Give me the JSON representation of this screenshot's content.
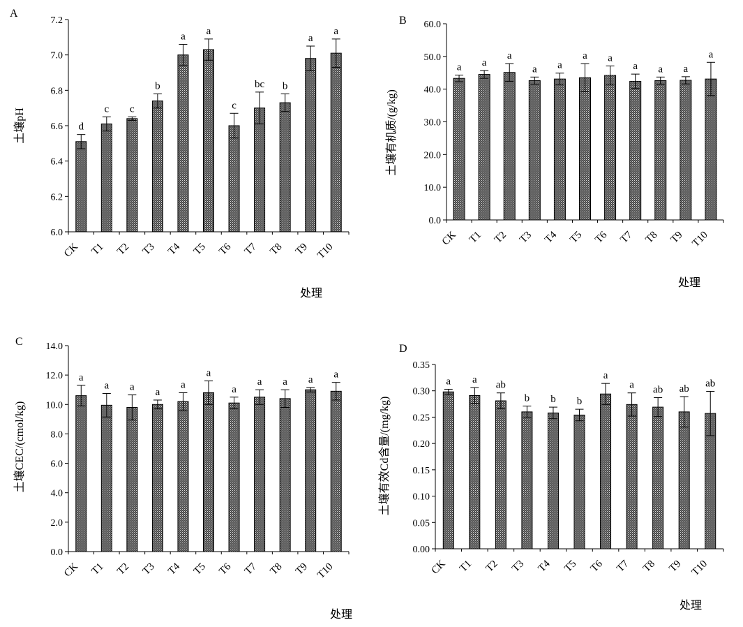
{
  "chart_data": [
    {
      "panel": "A",
      "type": "bar",
      "categories": [
        "CK",
        "T1",
        "T2",
        "T3",
        "T4",
        "T5",
        "T6",
        "T7",
        "T8",
        "T9",
        "T10"
      ],
      "values": [
        6.51,
        6.61,
        6.64,
        6.74,
        7.0,
        7.03,
        6.6,
        6.7,
        6.73,
        6.98,
        7.01
      ],
      "errors": [
        0.04,
        0.04,
        0.01,
        0.04,
        0.06,
        0.06,
        0.07,
        0.09,
        0.05,
        0.07,
        0.08
      ],
      "labels": [
        "d",
        "c",
        "c",
        "b",
        "a",
        "a",
        "c",
        "bc",
        "b",
        "a",
        "a"
      ],
      "ylabel": "土壤pH",
      "xlabel": "处理",
      "ylim": [
        6.0,
        7.2
      ],
      "yticks": [
        "6.0",
        "6.2",
        "6.4",
        "6.6",
        "6.8",
        "7.0",
        "7.2"
      ],
      "grid": false
    },
    {
      "panel": "B",
      "type": "bar",
      "categories": [
        "CK",
        "T1",
        "T2",
        "T3",
        "T4",
        "T5",
        "T6",
        "T7",
        "T8",
        "T9",
        "T10"
      ],
      "values": [
        43.3,
        44.5,
        45.1,
        42.6,
        43.1,
        43.5,
        44.2,
        42.4,
        42.6,
        42.7,
        43.1
      ],
      "errors": [
        1.0,
        1.2,
        2.7,
        1.1,
        1.8,
        4.3,
        2.9,
        2.2,
        1.1,
        1.1,
        5.1
      ],
      "labels": [
        "a",
        "a",
        "a",
        "a",
        "a",
        "a",
        "a",
        "a",
        "a",
        "a",
        "a"
      ],
      "ylabel": "土壤有机质/(g/kg)",
      "xlabel": "处理",
      "ylim": [
        0,
        60
      ],
      "yticks": [
        "0.0",
        "10.0",
        "20.0",
        "30.0",
        "40.0",
        "50.0",
        "60.0"
      ],
      "grid": false
    },
    {
      "panel": "C",
      "type": "bar",
      "categories": [
        "CK",
        "T1",
        "T2",
        "T3",
        "T4",
        "T5",
        "T6",
        "T7",
        "T8",
        "T9",
        "T10"
      ],
      "values": [
        10.6,
        9.95,
        9.8,
        10.0,
        10.2,
        10.8,
        10.1,
        10.5,
        10.4,
        11.0,
        10.9
      ],
      "errors": [
        0.7,
        0.8,
        0.85,
        0.3,
        0.6,
        0.8,
        0.4,
        0.5,
        0.6,
        0.15,
        0.6
      ],
      "labels": [
        "a",
        "a",
        "a",
        "a",
        "a",
        "a",
        "a",
        "a",
        "a",
        "a",
        "a"
      ],
      "ylabel": "土壤CEC/(cmol/kg)",
      "xlabel": "处理",
      "ylim": [
        0,
        14
      ],
      "yticks": [
        "0.0",
        "2.0",
        "4.0",
        "6.0",
        "8.0",
        "10.0",
        "12.0",
        "14.0"
      ],
      "grid": false
    },
    {
      "panel": "D",
      "type": "bar",
      "categories": [
        "CK",
        "T1",
        "T2",
        "T3",
        "T4",
        "T5",
        "T6",
        "T7",
        "T8",
        "T9",
        "T10"
      ],
      "values": [
        0.298,
        0.291,
        0.281,
        0.26,
        0.258,
        0.254,
        0.294,
        0.274,
        0.269,
        0.26,
        0.257
      ],
      "errors": [
        0.005,
        0.015,
        0.015,
        0.011,
        0.011,
        0.011,
        0.02,
        0.022,
        0.018,
        0.029,
        0.042
      ],
      "labels": [
        "a",
        "a",
        "ab",
        "b",
        "b",
        "b",
        "a",
        "a",
        "ab",
        "ab",
        "ab"
      ],
      "ylabel": "土壤有效Cd含量/(mg/kg)",
      "xlabel": "处理",
      "ylim": [
        0,
        0.35
      ],
      "yticks": [
        "0.00",
        "0.05",
        "0.10",
        "0.15",
        "0.20",
        "0.25",
        "0.30",
        "0.35"
      ],
      "grid": false
    }
  ]
}
